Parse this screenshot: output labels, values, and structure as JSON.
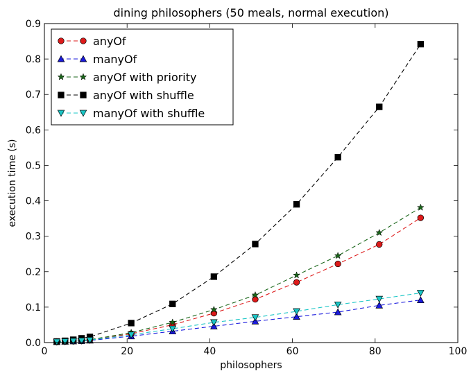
{
  "chart_data": {
    "type": "line",
    "title": "dining philosophers (50 meals, normal execution)",
    "xlabel": "philosophers",
    "ylabel": "execution time (s)",
    "xlim": [
      0,
      100
    ],
    "ylim": [
      0,
      0.9
    ],
    "xticks": [
      0,
      20,
      40,
      60,
      80,
      100
    ],
    "yticks": [
      0.0,
      0.1,
      0.2,
      0.3,
      0.4,
      0.5,
      0.6,
      0.7,
      0.8,
      0.9
    ],
    "xtick_labels": [
      "0",
      "20",
      "40",
      "60",
      "80",
      "100"
    ],
    "ytick_labels": [
      "0.0",
      "0.1",
      "0.2",
      "0.3",
      "0.4",
      "0.5",
      "0.6",
      "0.7",
      "0.8",
      "0.9"
    ],
    "grid": false,
    "legend_position": "top-left",
    "x": [
      3,
      5,
      7,
      9,
      11,
      21,
      31,
      41,
      51,
      61,
      71,
      81,
      91
    ],
    "series": [
      {
        "name": "anyOf",
        "color": "#dd1a1a",
        "marker": "circle",
        "values": [
          0.002,
          0.003,
          0.004,
          0.005,
          0.007,
          0.025,
          0.05,
          0.083,
          0.122,
          0.17,
          0.222,
          0.277,
          0.352
        ]
      },
      {
        "name": "manyOf",
        "color": "#1a1add",
        "marker": "triangle-up",
        "values": [
          0.002,
          0.003,
          0.004,
          0.005,
          0.006,
          0.018,
          0.032,
          0.046,
          0.06,
          0.073,
          0.086,
          0.105,
          0.12
        ]
      },
      {
        "name": "anyOf with priority",
        "color": "#1a661a",
        "marker": "star",
        "values": [
          0.002,
          0.003,
          0.004,
          0.006,
          0.008,
          0.028,
          0.057,
          0.093,
          0.134,
          0.19,
          0.245,
          0.31,
          0.381
        ]
      },
      {
        "name": "anyOf with shuffle",
        "color": "#000000",
        "marker": "square",
        "values": [
          0.003,
          0.005,
          0.008,
          0.012,
          0.016,
          0.055,
          0.109,
          0.186,
          0.278,
          0.39,
          0.523,
          0.665,
          0.842
        ]
      },
      {
        "name": "manyOf with shuffle",
        "color": "#1ac6c6",
        "marker": "triangle-down",
        "values": [
          0.002,
          0.003,
          0.004,
          0.005,
          0.007,
          0.022,
          0.039,
          0.057,
          0.071,
          0.088,
          0.107,
          0.123,
          0.14
        ]
      }
    ]
  }
}
